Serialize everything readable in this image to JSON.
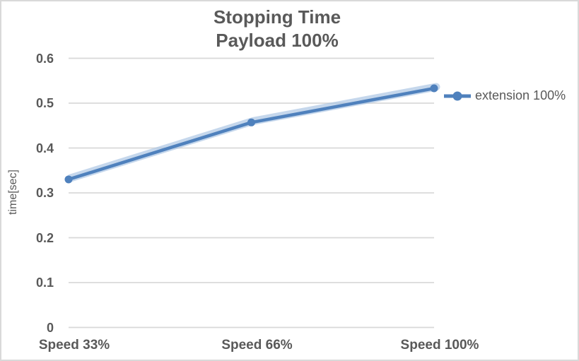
{
  "chart_data": {
    "type": "line",
    "title": "Stopping Time",
    "subtitle": "Payload 100%",
    "xlabel": "",
    "ylabel": "time[sec]",
    "categories": [
      "Speed 33%",
      "Speed 66%",
      "Speed 100%"
    ],
    "series": [
      {
        "name": "extension 100%",
        "values": [
          0.33,
          0.457,
          0.533
        ],
        "color": "#4f81bd",
        "marker": "circle",
        "glow": true
      }
    ],
    "ylim": [
      0,
      0.6
    ],
    "y_ticks": [
      "0",
      "0.1",
      "0.2",
      "0.3",
      "0.4",
      "0.5",
      "0.6"
    ],
    "grid": true,
    "legend_position": "right"
  },
  "colors": {
    "series_blue": "#4f81bd",
    "glow_blue": "#a6c1e2",
    "grid_gray": "#d9d9d9",
    "text_gray": "#595959",
    "border_gray": "#d9d9d9",
    "background": "#ffffff"
  }
}
